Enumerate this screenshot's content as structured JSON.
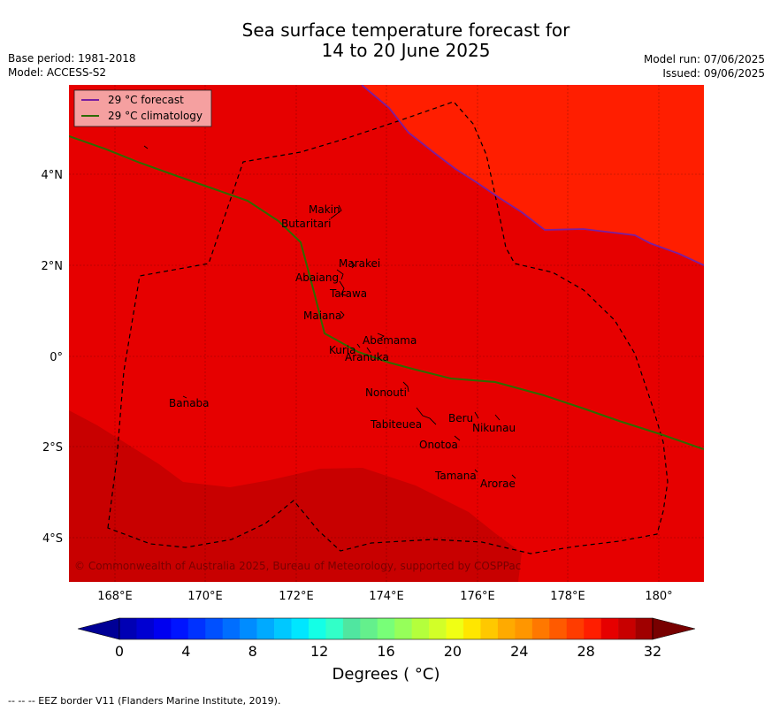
{
  "title": {
    "line1": "Sea surface temperature forecast for",
    "line2": "14 to 20 June 2025"
  },
  "meta_left": {
    "base_period": "Base period: 1981-2018",
    "model": "Model: ACCESS-S2"
  },
  "meta_right": {
    "model_run": "Model run: 07/06/2025",
    "issued": "Issued: 09/06/2025"
  },
  "legend": {
    "forecast": "29 °C  forecast",
    "climatology": "29 °C  climatology"
  },
  "copyright": "© Commonwealth of Australia 2025, Bureau of Meteorology, supported by COSPPac",
  "axes": {
    "x_ticks": [
      "168°E",
      "170°E",
      "172°E",
      "174°E",
      "176°E",
      "178°E",
      "180°"
    ],
    "y_ticks": [
      "4°N",
      "2°N",
      "0°",
      "2°S",
      "4°S"
    ]
  },
  "islands": [
    {
      "name": "Makin"
    },
    {
      "name": "Butaritari"
    },
    {
      "name": "Marakei"
    },
    {
      "name": "Abaiang"
    },
    {
      "name": "Tarawa"
    },
    {
      "name": "Maiana"
    },
    {
      "name": "Abemama"
    },
    {
      "name": "Kuria"
    },
    {
      "name": "Aranuka"
    },
    {
      "name": "Nonouti"
    },
    {
      "name": "Banaba"
    },
    {
      "name": "Beru"
    },
    {
      "name": "Tabiteuea"
    },
    {
      "name": "Nikunau"
    },
    {
      "name": "Onotoa"
    },
    {
      "name": "Tamana"
    },
    {
      "name": "Arorae"
    }
  ],
  "colorbar": {
    "ticks": [
      "0",
      "4",
      "8",
      "12",
      "16",
      "20",
      "24",
      "28",
      "32"
    ],
    "label": "Degrees ( °C)",
    "colors": [
      "#000096",
      "#0000b4",
      "#0000d2",
      "#0000f0",
      "#0014ff",
      "#0032ff",
      "#0050ff",
      "#006eff",
      "#008cff",
      "#00aaff",
      "#00c8ff",
      "#00e6ff",
      "#14ffe6",
      "#32ffc8",
      "#50e6a0",
      "#64f08c",
      "#78ff78",
      "#96ff5a",
      "#b4ff3c",
      "#d2ff28",
      "#f0ff14",
      "#ffe600",
      "#ffc800",
      "#ffaa00",
      "#ff9600",
      "#ff7800",
      "#ff5a00",
      "#ff3c00",
      "#ff1e00",
      "#e60000",
      "#c80000",
      "#a00000",
      "#780000"
    ]
  },
  "colors": {
    "sst_30_31": "#e60000",
    "sst_29_30": "#ff1e00",
    "sst_31_32": "#c80000",
    "forecast_line": "#7a1fa0",
    "climatology_line": "#2e6b00"
  },
  "footer": "--  --  -- EEZ border V11 (Flanders Marine Institute, 2019)."
}
